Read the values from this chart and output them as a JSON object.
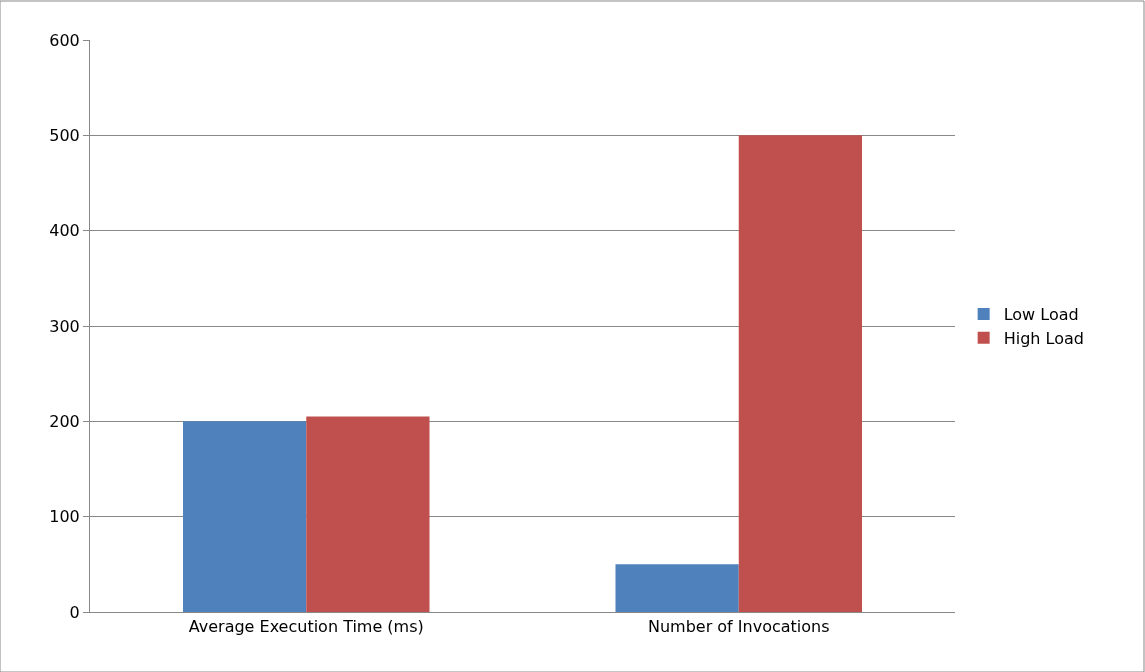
{
  "chart_data": {
    "type": "bar",
    "categories": [
      "Average Execution Time (ms)",
      "Number of Invocations"
    ],
    "series": [
      {
        "name": "Low Load",
        "color": "#4f81bd",
        "values": [
          200,
          50
        ]
      },
      {
        "name": "High Load",
        "color": "#c0504d",
        "values": [
          205,
          500
        ]
      }
    ],
    "ylim": [
      0,
      600
    ],
    "yticks": [
      0,
      100,
      200,
      300,
      400,
      500,
      600
    ],
    "grid": "y",
    "legend": "right"
  }
}
